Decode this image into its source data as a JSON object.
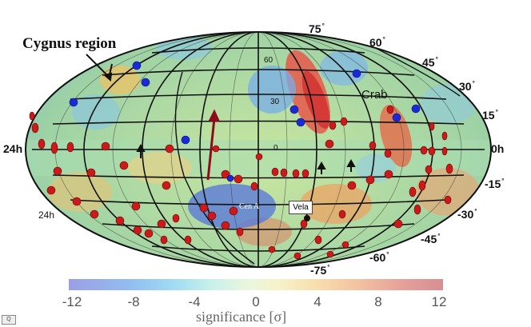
{
  "title": "Cygnus region",
  "annotations": {
    "crab": "Crab",
    "cen_a": "Cen A",
    "vela": "Vela"
  },
  "ra_labels": {
    "left_equator": "24h",
    "left_lower": "24h",
    "right_equator": "0h"
  },
  "lat_labels": {
    "top_75": "75",
    "p60": "60",
    "p45": "45",
    "p30": "30",
    "p15": "15",
    "m15": "-15",
    "m30": "-30",
    "m45": "-45",
    "m60": "-60",
    "m75": "-75"
  },
  "inner_labels": {
    "i60": "60",
    "i30": "30",
    "i0": "0"
  },
  "colorbar": {
    "ticks": [
      "-12",
      "-8",
      "-4",
      "0",
      "4",
      "8",
      "12"
    ],
    "label": "significance [σ]"
  },
  "corner_icon": "Q"
}
